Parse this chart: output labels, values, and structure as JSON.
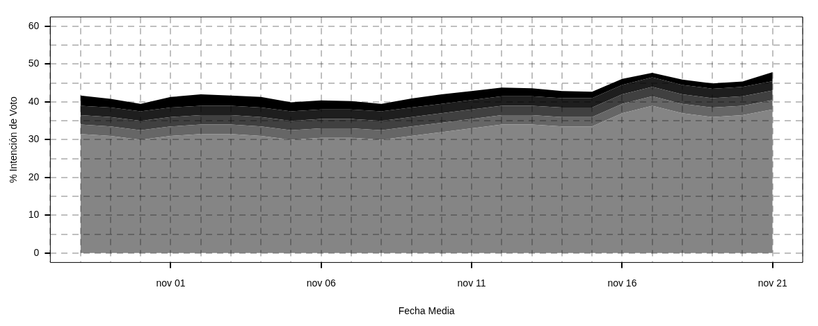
{
  "chart_data": {
    "type": "area",
    "stacked": true,
    "xlabel": "Fecha Media",
    "ylabel": "% Intención de Voto",
    "x": [
      "--10-29",
      "--10-30",
      "--10-31",
      "--11-01",
      "--11-02",
      "--11-03",
      "--11-04",
      "--11-05",
      "--11-06",
      "--11-07",
      "--11-08",
      "--11-09",
      "--11-10",
      "--11-11",
      "--11-12",
      "--11-13",
      "--11-14",
      "--11-15",
      "--11-16",
      "--11-17",
      "--11-18",
      "--11-19",
      "--11-20",
      "--11-21"
    ],
    "series": [
      {
        "color": "#858585",
        "values": [
          31.5,
          31,
          30,
          31,
          31.5,
          31.5,
          31,
          30,
          30.5,
          30.5,
          30,
          31,
          32,
          33,
          34,
          34,
          33.5,
          33.5,
          37,
          39,
          37,
          36,
          36.5,
          38
        ]
      },
      {
        "color": "#666666",
        "values": [
          2.5,
          2.5,
          2.5,
          2.5,
          2.5,
          2.5,
          2.5,
          2.5,
          2.5,
          2.5,
          2.5,
          2.5,
          2.5,
          2.5,
          2.5,
          2.5,
          2.5,
          2.5,
          2.5,
          2.5,
          2.5,
          2.5,
          2.5,
          2.5
        ]
      },
      {
        "color": "#404040",
        "values": [
          2.5,
          2.5,
          2.5,
          2.5,
          2.5,
          2.5,
          2.5,
          2.5,
          2.5,
          2.5,
          2.5,
          2.5,
          2.5,
          2.5,
          2.5,
          2.5,
          2.5,
          2.5,
          2.5,
          2.5,
          2.5,
          2.5,
          2.5,
          2.5
        ]
      },
      {
        "color": "#1e1e1e",
        "values": [
          2.5,
          2.5,
          2.5,
          2.5,
          2.5,
          2.5,
          2.5,
          2.5,
          2.5,
          2.5,
          2.5,
          2.5,
          2.5,
          2.5,
          2.5,
          2.5,
          2.5,
          2.5,
          2.5,
          2.5,
          2.5,
          2.5,
          2.5,
          2.5
        ]
      },
      {
        "color": "#000000",
        "values": [
          2.7,
          2.3,
          2.0,
          2.8,
          3.0,
          2.7,
          2.8,
          2.4,
          2.4,
          2.2,
          2.0,
          2.4,
          2.5,
          2.4,
          2.3,
          2.1,
          1.9,
          1.7,
          1.6,
          1.2,
          1.4,
          1.4,
          1.4,
          2.4
        ]
      }
    ],
    "xlim": [
      "--10-28",
      "--11-22"
    ],
    "xticks": [
      {
        "value": "--10-28",
        "label": null
      },
      {
        "value": "--10-29",
        "label": null
      },
      {
        "value": "--10-30",
        "label": null
      },
      {
        "value": "--10-31",
        "label": null
      },
      {
        "value": "--11-01",
        "label": "nov 01"
      },
      {
        "value": "--11-02",
        "label": null
      },
      {
        "value": "--11-03",
        "label": null
      },
      {
        "value": "--11-04",
        "label": null
      },
      {
        "value": "--11-05",
        "label": null
      },
      {
        "value": "--11-06",
        "label": "nov 06"
      },
      {
        "value": "--11-07",
        "label": null
      },
      {
        "value": "--11-08",
        "label": null
      },
      {
        "value": "--11-09",
        "label": null
      },
      {
        "value": "--11-10",
        "label": null
      },
      {
        "value": "--11-11",
        "label": "nov 11"
      },
      {
        "value": "--11-12",
        "label": null
      },
      {
        "value": "--11-13",
        "label": null
      },
      {
        "value": "--11-14",
        "label": null
      },
      {
        "value": "--11-15",
        "label": null
      },
      {
        "value": "--11-16",
        "label": "nov 16"
      },
      {
        "value": "--11-17",
        "label": null
      },
      {
        "value": "--11-18",
        "label": null
      },
      {
        "value": "--11-19",
        "label": null
      },
      {
        "value": "--11-20",
        "label": null
      },
      {
        "value": "--11-21",
        "label": "nov 21"
      },
      {
        "value": "--11-22",
        "label": null
      }
    ],
    "ylim": [
      -2.5,
      62.5
    ],
    "yticks": [
      0,
      {
        "value": 5,
        "label": null
      },
      10,
      {
        "value": 15,
        "label": null
      },
      20,
      {
        "value": 25,
        "label": null
      },
      30,
      {
        "value": 35,
        "label": null
      },
      40,
      {
        "value": 45,
        "label": null
      },
      50,
      {
        "value": 55,
        "label": null
      },
      60
    ],
    "grid": true,
    "legend": false
  }
}
